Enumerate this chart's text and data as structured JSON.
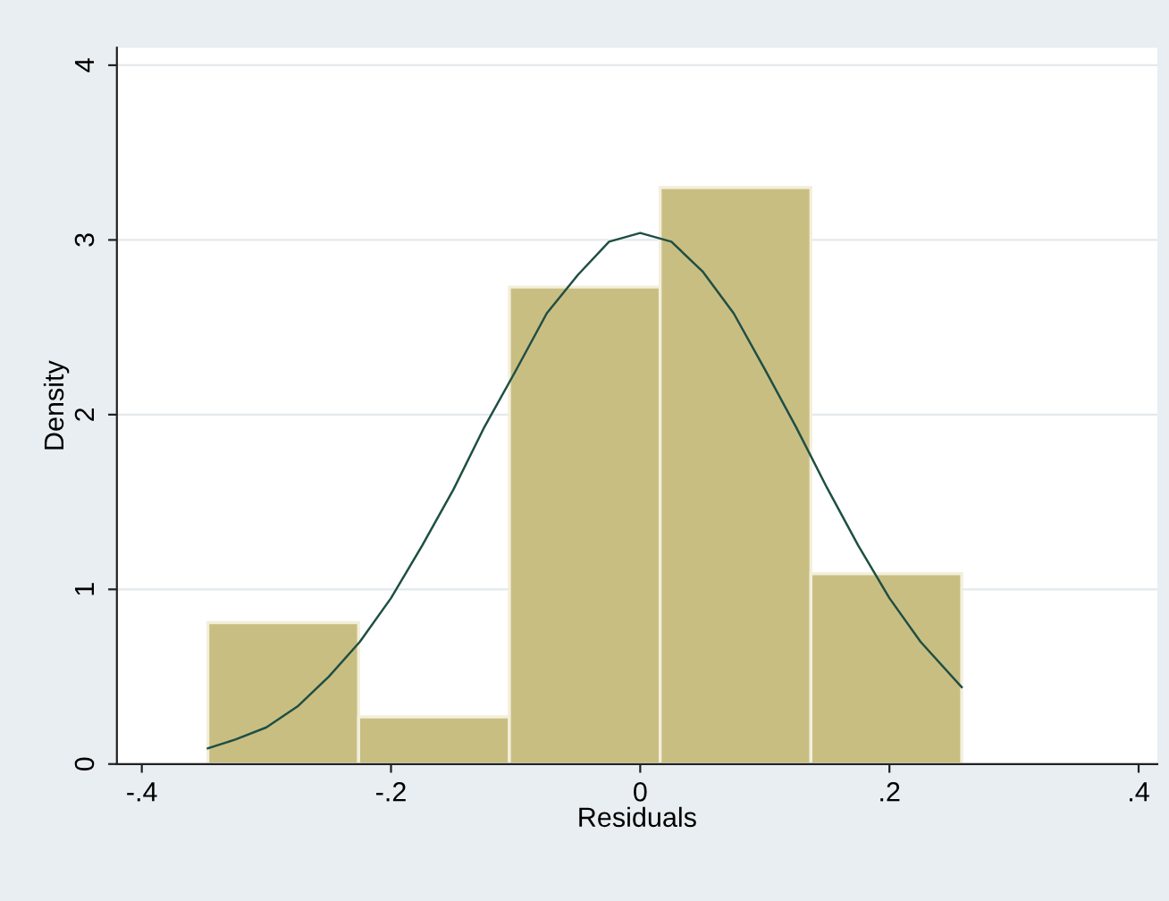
{
  "chart_data": {
    "type": "histogram",
    "xlabel": "Residuals",
    "ylabel": "Density",
    "bins": [
      -0.347,
      -0.226,
      -0.105,
      0.016,
      0.137,
      0.258
    ],
    "values": [
      0.81,
      0.27,
      2.73,
      3.3,
      1.09
    ],
    "color": "#c9be82",
    "series": [
      {
        "type": "line",
        "color": "#1f4f44",
        "x": [
          -0.347,
          -0.325,
          -0.3,
          -0.275,
          -0.25,
          -0.225,
          -0.2,
          -0.175,
          -0.15,
          -0.125,
          -0.1,
          -0.075,
          -0.05,
          -0.025,
          0,
          0.025,
          0.05,
          0.075,
          0.1,
          0.125,
          0.15,
          0.175,
          0.2,
          0.225,
          0.258
        ],
        "values": [
          0.09,
          0.14,
          0.21,
          0.33,
          0.5,
          0.7,
          0.95,
          1.25,
          1.57,
          1.93,
          2.25,
          2.58,
          2.8,
          2.99,
          3.04,
          2.99,
          2.82,
          2.58,
          2.26,
          1.93,
          1.58,
          1.25,
          0.95,
          0.7,
          0.44
        ]
      }
    ],
    "xlim": [
      -0.42,
      0.415
    ],
    "ylim": [
      0,
      4.1
    ],
    "xticks": [
      {
        "value": -0.4,
        "label": "-.4"
      },
      {
        "value": -0.2,
        "label": "-.2"
      },
      0,
      {
        "value": 0.2,
        "label": ".2"
      },
      {
        "value": 0.4,
        "label": ".4"
      }
    ],
    "yticks": [
      0,
      1,
      2,
      3,
      4
    ],
    "grid": "y"
  }
}
